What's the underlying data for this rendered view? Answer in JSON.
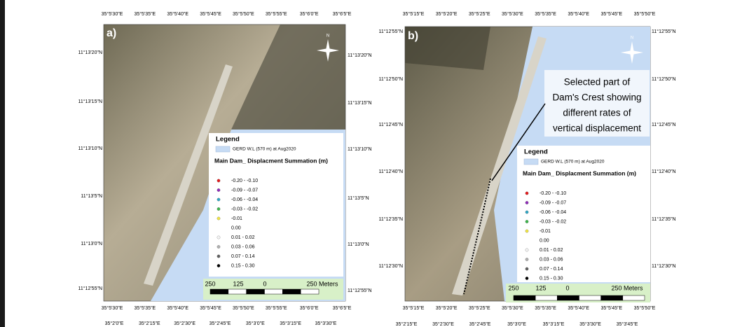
{
  "panels": [
    {
      "label": "a)",
      "top_labels": [
        "35°5'30\"E",
        "35°5'35\"E",
        "35°5'40\"E",
        "35°5'45\"E",
        "35°5'50\"E",
        "35°5'55\"E",
        "35°6'0\"E",
        "35°6'5\"E"
      ],
      "bottom_labels": [
        "35°5'30\"E",
        "35°5'35\"E",
        "35°5'40\"E",
        "35°5'45\"E",
        "35°5'50\"E",
        "35°5'55\"E",
        "35°6'0\"E",
        "35°6'5\"E"
      ],
      "left_labels": [
        "11°13'20\"N",
        "11°13'15\"N",
        "11°13'10\"N",
        "11°13'5\"N",
        "11°13'0\"N",
        "11°12'55\"N"
      ],
      "right_labels": [
        "11°13'20\"N",
        "11°13'15\"N",
        "11°13'10\"N",
        "11°13'5\"N",
        "11°13'0\"N",
        "11°12'55\"N"
      ],
      "lower_labels": [
        "35°2'0\"E",
        "35°2'15\"E",
        "35°2'30\"E",
        "35°2'45\"E",
        "35°3'0\"E",
        "35°3'15\"E",
        "35°3'30\"E"
      ],
      "north": "N",
      "legend": {
        "title": "Legend",
        "water": "GERD W.L (570 m) at Aug2020",
        "heading": "Main Dam_ Displacment Summation (m)",
        "items": [
          {
            "label": "-0.20 - -0.10",
            "color": "#e31a1c"
          },
          {
            "label": "-0.09 - -0.07",
            "color": "#8e2bb8"
          },
          {
            "label": "-0.06 - -0.04",
            "color": "#2fa6c4"
          },
          {
            "label": "-0.03 - -0.02",
            "color": "#3cb44b"
          },
          {
            "label": "-0.01",
            "color": "#f0e442"
          },
          {
            "label": "0.00",
            "color": "none"
          },
          {
            "label": "0.01 - 0.02",
            "color": "#f4f4f4"
          },
          {
            "label": "0.03 - 0.06",
            "color": "#b0b0b0"
          },
          {
            "label": "0.07 - 0.14",
            "color": "#606060"
          },
          {
            "label": "0.15 - 0.30",
            "color": "#000000"
          }
        ]
      },
      "scale": [
        "250",
        "125",
        "0",
        "250 Meters"
      ]
    },
    {
      "label": "b)",
      "top_labels": [
        "35°5'15\"E",
        "35°5'20\"E",
        "35°5'25\"E",
        "35°5'30\"E",
        "35°5'35\"E",
        "35°5'40\"E",
        "35°5'45\"E",
        "35°5'50\"E"
      ],
      "bottom_labels": [
        "35°5'15\"E",
        "35°5'20\"E",
        "35°5'25\"E",
        "35°5'30\"E",
        "35°5'35\"E",
        "35°5'40\"E",
        "35°5'45\"E",
        "35°5'50\"E"
      ],
      "left_labels": [
        "11°12'55\"N",
        "11°12'50\"N",
        "11°12'45\"N",
        "11°12'40\"N",
        "11°12'35\"N",
        "11°12'30\"N"
      ],
      "right_labels": [
        "11°12'55\"N",
        "11°12'50\"N",
        "11°12'45\"N",
        "11°12'40\"N",
        "11°12'35\"N",
        "11°12'30\"N"
      ],
      "lower_labels": [
        "35°2'15\"E",
        "35°2'30\"E",
        "35°2'45\"E",
        "35°3'0\"E",
        "35°3'15\"E",
        "35°3'30\"E",
        "35°3'45\"E"
      ],
      "north": "N",
      "legend": {
        "title": "Legend",
        "water": "GERD W.L (570 m) at Aug2020",
        "heading": "Main Dam_ Displacment Summation (m)",
        "items": [
          {
            "label": "-0.20 - -0.10",
            "color": "#e31a1c"
          },
          {
            "label": "-0.09 - -0.07",
            "color": "#8e2bb8"
          },
          {
            "label": "-0.06 - -0.04",
            "color": "#2fa6c4"
          },
          {
            "label": "-0.03 - -0.02",
            "color": "#3cb44b"
          },
          {
            "label": "-0.01",
            "color": "#f0e442"
          },
          {
            "label": "0.00",
            "color": "none"
          },
          {
            "label": "0.01 - 0.02",
            "color": "#f4f4f4"
          },
          {
            "label": "0.03 - 0.06",
            "color": "#b0b0b0"
          },
          {
            "label": "0.07 - 0.14",
            "color": "#606060"
          },
          {
            "label": "0.15 - 0.30",
            "color": "#000000"
          }
        ]
      },
      "scale": [
        "250",
        "125",
        "0",
        "250 Meters"
      ],
      "annotation": [
        "Selected part of",
        "Dam's Crest showing",
        "different rates of",
        "vertical displacement"
      ]
    }
  ]
}
